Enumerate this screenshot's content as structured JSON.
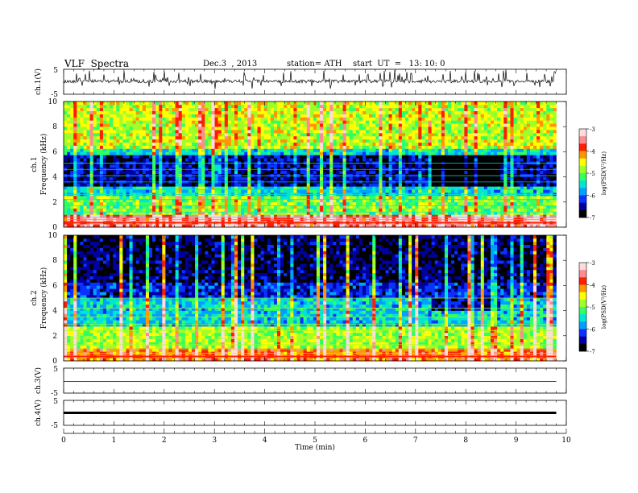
{
  "header": {
    "title": "VLF  Spectra",
    "date": "Dec.3  , 2013",
    "station": "station= ATH",
    "start": "start  UT  =   13: 10: 0"
  },
  "colors": {
    "colormap": [
      "#000000",
      "#0000a0",
      "#0a32ff",
      "#00a0ff",
      "#00e6d2",
      "#32ff64",
      "#a0ff28",
      "#ffff00",
      "#ff9600",
      "#ff1e00",
      "#ff8c8c",
      "#ffdcdc"
    ],
    "trace": "#000000"
  },
  "chart_data": [
    {
      "type": "line",
      "panel": "ch1-waveform",
      "ylabel": "ch.1(V)",
      "ylim": [
        -5,
        5
      ],
      "yticklabels": [
        "5",
        "-5"
      ],
      "description_level": 0.2
    },
    {
      "type": "heatmap",
      "panel": "ch1-spectrogram",
      "ylabel": "ch.1\nFrequency  (kHz)",
      "ylabel_line1": "ch.1",
      "ylabel_line2": "Frequency  (kHz)",
      "ylim": [
        0,
        10
      ],
      "yticklabels": [
        "0",
        "2",
        "4",
        "6",
        "8",
        "10"
      ],
      "colorbar": {
        "label": "log(PSD(V²/Hz)",
        "range": [
          -7,
          -3
        ],
        "ticklabels": [
          "-3",
          "-4",
          "-5",
          "-6",
          "-7"
        ]
      },
      "quiet_band_khz": [
        3.3,
        5.7
      ],
      "quiet_time_min": [
        7.3,
        8.7
      ]
    },
    {
      "type": "heatmap",
      "panel": "ch2-spectrogram",
      "ylabel_line1": "ch.2",
      "ylabel_line2": "Frequency  (kHz)",
      "ylim": [
        0,
        10
      ],
      "yticklabels": [
        "0",
        "2",
        "4",
        "6",
        "8",
        "10"
      ],
      "colorbar": {
        "label": "log(PSD(V²/Hz)",
        "range": [
          -7,
          -3
        ],
        "ticklabels": [
          "-3",
          "-4",
          "-5",
          "-6",
          "-7"
        ]
      },
      "quiet_band_khz": [
        4.0,
        5.0
      ],
      "quiet_time_min": [
        7.3,
        8.7
      ]
    },
    {
      "type": "line",
      "panel": "ch3-waveform",
      "ylabel": "ch.3(V)",
      "ylim": [
        -5,
        5
      ],
      "yticklabels": [
        "5",
        "-5"
      ],
      "level": 0
    },
    {
      "type": "line",
      "panel": "ch4-waveform",
      "ylabel": "ch.4(V)",
      "ylim": [
        -5,
        5
      ],
      "yticklabels": [
        "5",
        "-5"
      ],
      "level": 0
    }
  ],
  "xaxis": {
    "label": "Time  (min)",
    "xlim": [
      0,
      10
    ],
    "ticks": [
      0,
      1,
      2,
      3,
      4,
      5,
      6,
      7,
      8,
      9,
      10
    ],
    "data_end_min": 9.8
  }
}
